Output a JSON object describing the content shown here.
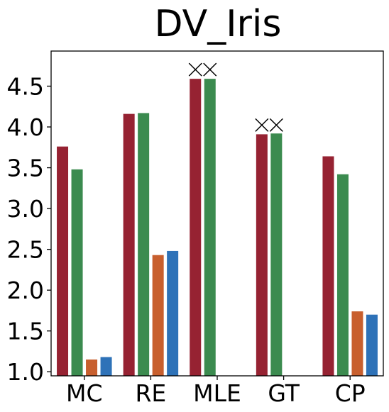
{
  "chart_data": {
    "type": "bar",
    "title": "DV_Iris",
    "xlabel": "",
    "ylabel": "",
    "categories": [
      "MC",
      "RE",
      "MLE",
      "GT",
      "CP"
    ],
    "series": [
      {
        "color": "#962232",
        "values": [
          3.76,
          4.16,
          4.59,
          3.91,
          3.64
        ]
      },
      {
        "color": "#3b8b4f",
        "values": [
          3.48,
          4.17,
          4.59,
          3.92,
          3.42
        ]
      },
      {
        "color": "#c85f2e",
        "values": [
          1.15,
          2.43,
          null,
          null,
          1.74
        ]
      },
      {
        "color": "#2e72b8",
        "values": [
          1.18,
          2.48,
          null,
          null,
          1.7
        ]
      }
    ],
    "missing_marker": "×",
    "ylim": [
      0.95,
      4.93
    ],
    "yticks": [
      1.0,
      1.5,
      2.0,
      2.5,
      3.0,
      3.5,
      4.0,
      4.5
    ],
    "ytick_labels": [
      "1.0",
      "1.5",
      "2.0",
      "2.5",
      "3.0",
      "3.5",
      "4.0",
      "4.5"
    ],
    "grid": false,
    "legend": "none"
  }
}
